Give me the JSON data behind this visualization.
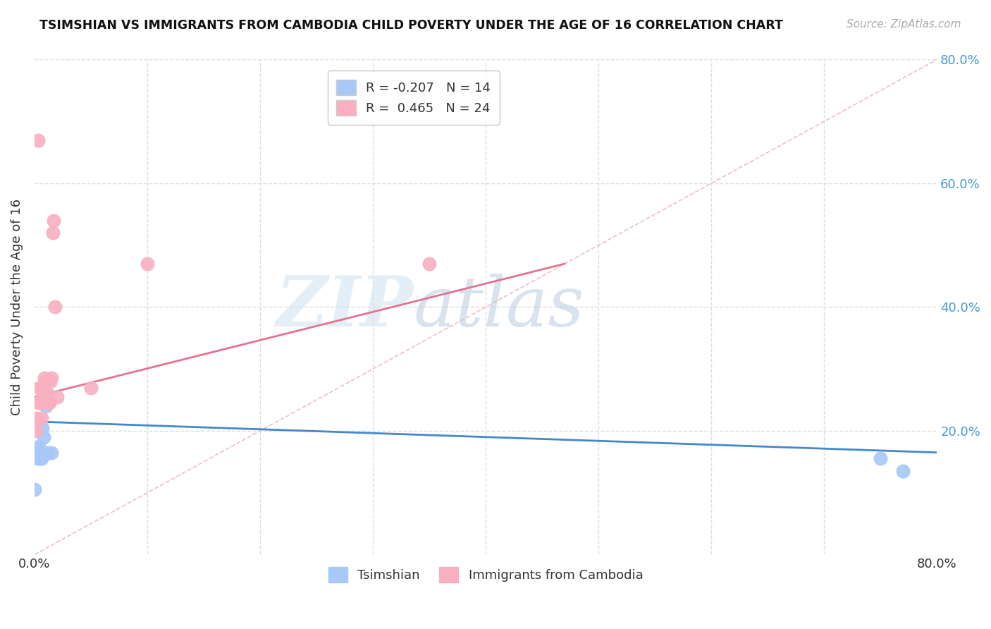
{
  "title": "TSIMSHIAN VS IMMIGRANTS FROM CAMBODIA CHILD POVERTY UNDER THE AGE OF 16 CORRELATION CHART",
  "source": "Source: ZipAtlas.com",
  "ylabel": "Child Poverty Under the Age of 16",
  "xlim": [
    0.0,
    0.8
  ],
  "ylim": [
    0.0,
    0.8
  ],
  "xtick_positions": [
    0.0,
    0.1,
    0.2,
    0.3,
    0.4,
    0.5,
    0.6,
    0.7,
    0.8
  ],
  "xticklabels": [
    "0.0%",
    "",
    "",
    "",
    "",
    "",
    "",
    "",
    "80.0%"
  ],
  "yticks_right": [
    0.2,
    0.4,
    0.6,
    0.8
  ],
  "ytick_right_labels": [
    "20.0%",
    "40.0%",
    "60.0%",
    "80.0%"
  ],
  "tsimshian_color": "#a8c8f8",
  "cambodia_color": "#f8b0c0",
  "tsimshian_line_color": "#4488cc",
  "cambodia_line_color": "#e87090",
  "diagonal_color": "#e8b0b8",
  "right_axis_color": "#4499dd",
  "grid_color": "#dddddd",
  "R_tsimshian": -0.207,
  "N_tsimshian": 14,
  "R_cambodia": 0.465,
  "N_cambodia": 24,
  "tsimshian_x": [
    0.0,
    0.002,
    0.003,
    0.004,
    0.005,
    0.006,
    0.007,
    0.008,
    0.009,
    0.01,
    0.012,
    0.015,
    0.75,
    0.77
  ],
  "tsimshian_y": [
    0.105,
    0.17,
    0.155,
    0.175,
    0.155,
    0.155,
    0.205,
    0.19,
    0.255,
    0.24,
    0.165,
    0.165,
    0.155,
    0.135
  ],
  "cambodia_x": [
    0.001,
    0.002,
    0.003,
    0.004,
    0.005,
    0.006,
    0.007,
    0.008,
    0.009,
    0.01,
    0.011,
    0.012,
    0.013,
    0.014,
    0.015,
    0.016,
    0.017,
    0.018,
    0.05,
    0.1,
    0.35,
    0.008,
    0.02,
    0.003
  ],
  "cambodia_y": [
    0.2,
    0.22,
    0.245,
    0.27,
    0.245,
    0.22,
    0.27,
    0.255,
    0.285,
    0.28,
    0.26,
    0.245,
    0.245,
    0.28,
    0.285,
    0.52,
    0.54,
    0.4,
    0.27,
    0.47,
    0.47,
    0.25,
    0.255,
    0.67
  ],
  "tsimshian_line_x": [
    0.0,
    0.8
  ],
  "tsimshian_line_y": [
    0.215,
    0.165
  ],
  "cambodia_line_x": [
    0.0,
    0.47
  ],
  "cambodia_line_y": [
    0.255,
    0.47
  ],
  "diagonal_line_x": [
    0.0,
    0.8
  ],
  "diagonal_line_y": [
    0.0,
    0.8
  ],
  "watermark_zip": "ZIP",
  "watermark_atlas": "atlas",
  "legend_label_tsimshian": "Tsimshian",
  "legend_label_cambodia": "Immigrants from Cambodia",
  "legend_r_tsimshian": "R = -0.207   N = 14",
  "legend_r_cambodia": "R =  0.465   N = 24"
}
